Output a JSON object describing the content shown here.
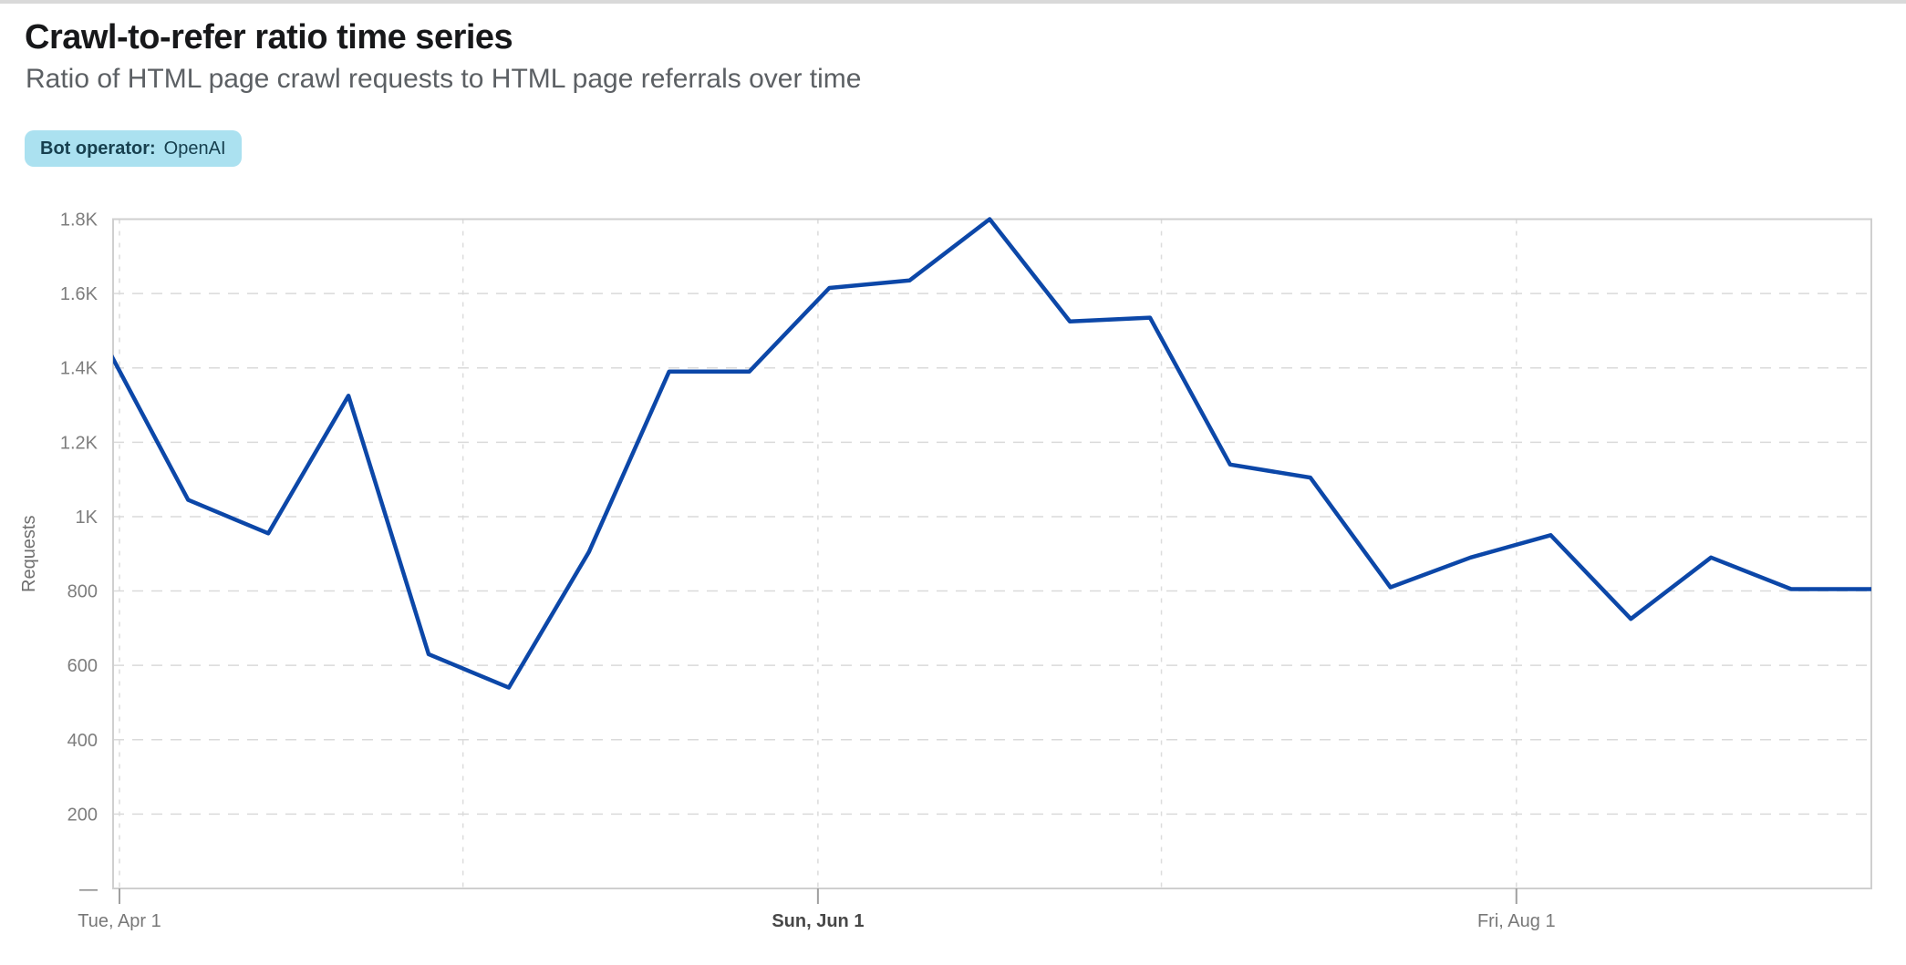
{
  "header": {
    "title": "Crawl-to-refer ratio time series",
    "subtitle": "Ratio of HTML page crawl requests to HTML page referrals over time",
    "badge": {
      "label": "Bot operator:",
      "value": "OpenAI"
    }
  },
  "colors": {
    "line_blue": "#0c47a8",
    "badge_background": "#abe1f0",
    "badge_text": "#17404f",
    "gridline": "#dadada",
    "plot_border": "#cfcfcf",
    "axis_label": "#7d7d7d",
    "x_label": "#787878",
    "x_label_bold": "#474747",
    "tick_mark": "#a0a0a0"
  },
  "chart_data": {
    "type": "line",
    "title": "Crawl-to-refer ratio time series",
    "subtitle": "Ratio of HTML page crawl requests to HTML page referrals over time",
    "xlabel": "",
    "ylabel": "Requests",
    "ylim": [
      0,
      1800
    ],
    "grid": true,
    "legend_position": "none",
    "y_ticks": [
      {
        "value": 1800,
        "label": "1.8K"
      },
      {
        "value": 1600,
        "label": "1.6K"
      },
      {
        "value": 1400,
        "label": "1.4K"
      },
      {
        "value": 1200,
        "label": "1.2K"
      },
      {
        "value": 1000,
        "label": "1K"
      },
      {
        "value": 800,
        "label": "800"
      },
      {
        "value": 600,
        "label": "600"
      },
      {
        "value": 400,
        "label": "400"
      },
      {
        "value": 200,
        "label": "200"
      },
      {
        "value": 0,
        "label": "—"
      }
    ],
    "x_ticks": [
      {
        "label": "Tue, Apr 1",
        "day": 1,
        "bold": false
      },
      {
        "label": "Sun, Jun 1",
        "day": 62,
        "bold": true
      },
      {
        "label": "Fri, Aug 1",
        "day": 123,
        "bold": false
      }
    ],
    "month_gridline_days": [
      1,
      31,
      62,
      92,
      123
    ],
    "series": [
      {
        "name": "Requests",
        "color": "#0c47a8",
        "points": [
          {
            "date": "Mon, Mar 31",
            "day": 0,
            "value": 1450
          },
          {
            "date": "Mon, Apr 7",
            "day": 7,
            "value": 1045
          },
          {
            "date": "Mon, Apr 14",
            "day": 14,
            "value": 955
          },
          {
            "date": "Mon, Apr 21",
            "day": 21,
            "value": 1325
          },
          {
            "date": "Mon, Apr 28",
            "day": 28,
            "value": 630
          },
          {
            "date": "Mon, May 5",
            "day": 35,
            "value": 540
          },
          {
            "date": "Mon, May 12",
            "day": 42,
            "value": 905
          },
          {
            "date": "Mon, May 19",
            "day": 49,
            "value": 1390
          },
          {
            "date": "Mon, May 26",
            "day": 56,
            "value": 1390
          },
          {
            "date": "Mon, Jun 2",
            "day": 63,
            "value": 1615
          },
          {
            "date": "Mon, Jun 9",
            "day": 70,
            "value": 1635
          },
          {
            "date": "Mon, Jun 16",
            "day": 77,
            "value": 1800
          },
          {
            "date": "Mon, Jun 23",
            "day": 84,
            "value": 1525
          },
          {
            "date": "Mon, Jun 30",
            "day": 91,
            "value": 1535
          },
          {
            "date": "Mon, Jul 7",
            "day": 98,
            "value": 1140
          },
          {
            "date": "Mon, Jul 14",
            "day": 105,
            "value": 1105
          },
          {
            "date": "Mon, Jul 21",
            "day": 112,
            "value": 810
          },
          {
            "date": "Mon, Jul 28",
            "day": 119,
            "value": 890
          },
          {
            "date": "Mon, Aug 4",
            "day": 126,
            "value": 950
          },
          {
            "date": "Mon, Aug 11",
            "day": 133,
            "value": 725
          },
          {
            "date": "Mon, Aug 18",
            "day": 140,
            "value": 890
          },
          {
            "date": "Mon, Aug 25",
            "day": 147,
            "value": 805
          },
          {
            "date": "Mon, Sep 1",
            "day": 154,
            "value": 805
          }
        ]
      }
    ]
  }
}
